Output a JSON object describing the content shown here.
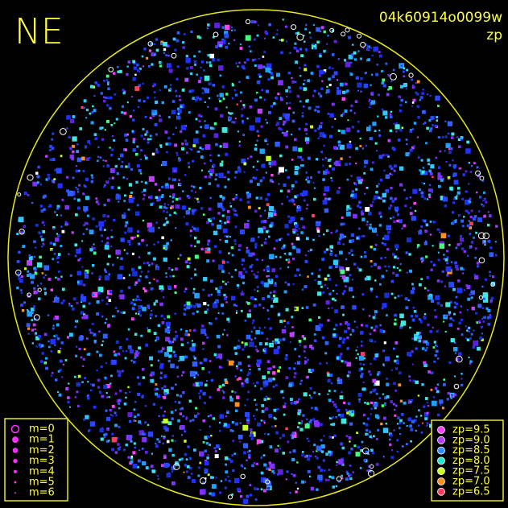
{
  "header": {
    "title": "NE",
    "frame_id": "04k60914o0099w",
    "subtitle": "zp"
  },
  "legend_m": {
    "items": [
      {
        "label": "m=0"
      },
      {
        "label": "m=1"
      },
      {
        "label": "m=2"
      },
      {
        "label": "m=3"
      },
      {
        "label": "m=4"
      },
      {
        "label": "m=5"
      },
      {
        "label": "m=6"
      }
    ]
  },
  "legend_zp": {
    "items": [
      {
        "label": "zp=9.5",
        "color": "#ff40ff"
      },
      {
        "label": "zp=9.0",
        "color": "#b040ff"
      },
      {
        "label": "zp=8.5",
        "color": "#3090ff"
      },
      {
        "label": "zp=8.0",
        "color": "#20e8d0"
      },
      {
        "label": "zp=7.5",
        "color": "#c8ff20"
      },
      {
        "label": "zp=7.0",
        "color": "#ff9020"
      },
      {
        "label": "zp=6.5",
        "color": "#ff4060"
      }
    ]
  }
}
